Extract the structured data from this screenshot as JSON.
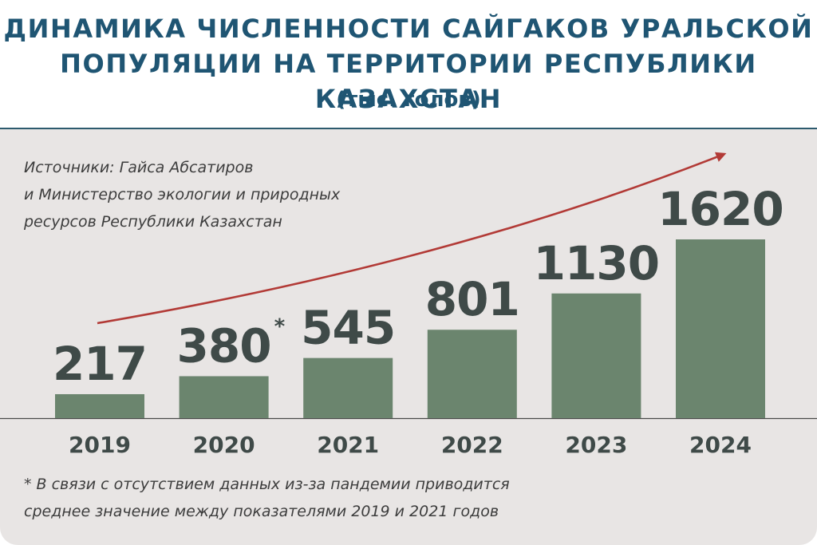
{
  "header": {
    "title_line1": "ДИНАМИКА ЧИСЛЕННОСТИ САЙГАКОВ УРАЛЬСКОЙ",
    "title_line2": "ПОПУЛЯЦИИ НА ТЕРРИТОРИИ РЕСПУБЛИКИ КАЗАХСТАН",
    "unit": "(тыс. голов)"
  },
  "source": {
    "line1": "Источники: Гайса Абсатиров",
    "line2": "и Министерство экологии и природных",
    "line3": "ресурсов Республики Казахстан"
  },
  "footnote": {
    "line1": "* В связи с отсутствием данных из-за пандемии приводится",
    "line2": "среднее значение между показателями 2019 и 2021 годов"
  },
  "colors": {
    "bar": "#6b856e",
    "value_text": "#3f4a48",
    "year_text": "#3f4a48",
    "arrow": "#b23a36",
    "title": "#1f5573",
    "panel": "#e8e5e4"
  },
  "chart_data": {
    "type": "bar",
    "title": "ДИНАМИКА ЧИСЛЕННОСТИ САЙГАКОВ УРАЛЬСКОЙ ПОПУЛЯЦИИ НА ТЕРРИТОРИИ РЕСПУБЛИКИ КАЗАХСТАН",
    "subtitle": "(тыс. голов)",
    "categories": [
      "2019",
      "2020",
      "2021",
      "2022",
      "2023",
      "2024"
    ],
    "values": [
      217,
      380,
      545,
      801,
      1130,
      1620
    ],
    "value_labels": [
      "217",
      "380",
      "545",
      "801",
      "1130",
      "1620"
    ],
    "annotations": [
      {
        "category": "2020",
        "marker": "*"
      }
    ],
    "trend_arrow": true,
    "ylim": [
      0,
      1620
    ],
    "grid": false,
    "legend": "none"
  }
}
